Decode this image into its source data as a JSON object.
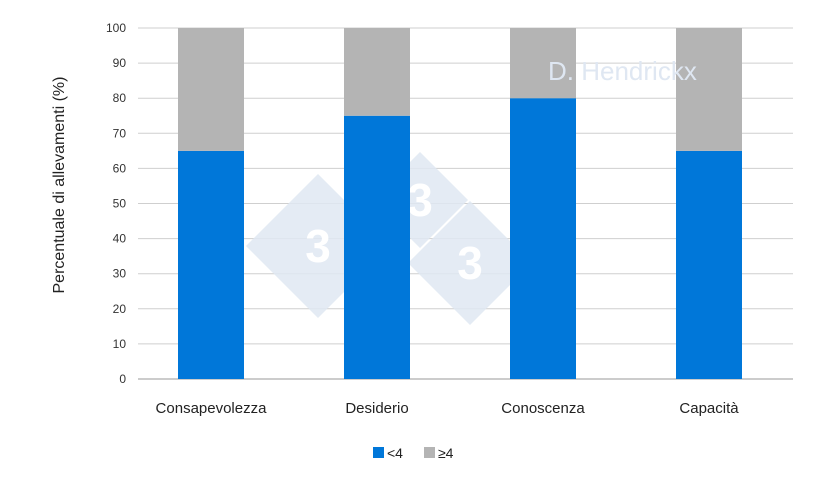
{
  "chart_data": {
    "type": "bar",
    "stacked": true,
    "categories": [
      "Consapevolezza",
      "Desiderio",
      "Conoscenza",
      "Capacità"
    ],
    "series": [
      {
        "name": "<4",
        "values": [
          65,
          75,
          80,
          65
        ],
        "color": "#0077d9"
      },
      {
        "name": "≥4",
        "values": [
          35,
          25,
          20,
          35
        ],
        "color": "#b4b4b4"
      }
    ],
    "ylabel": "Percentuale di allevamenti (%)",
    "xlabel": "",
    "ylim": [
      0,
      100
    ],
    "yticks": [
      0,
      10,
      20,
      30,
      40,
      50,
      60,
      70,
      80,
      90,
      100
    ],
    "grid": true,
    "legend_position": "bottom"
  },
  "watermark": {
    "text": "D. Hendrickx",
    "logo_digits": [
      "3",
      "3",
      "3"
    ],
    "color": "#dfe7f2"
  }
}
